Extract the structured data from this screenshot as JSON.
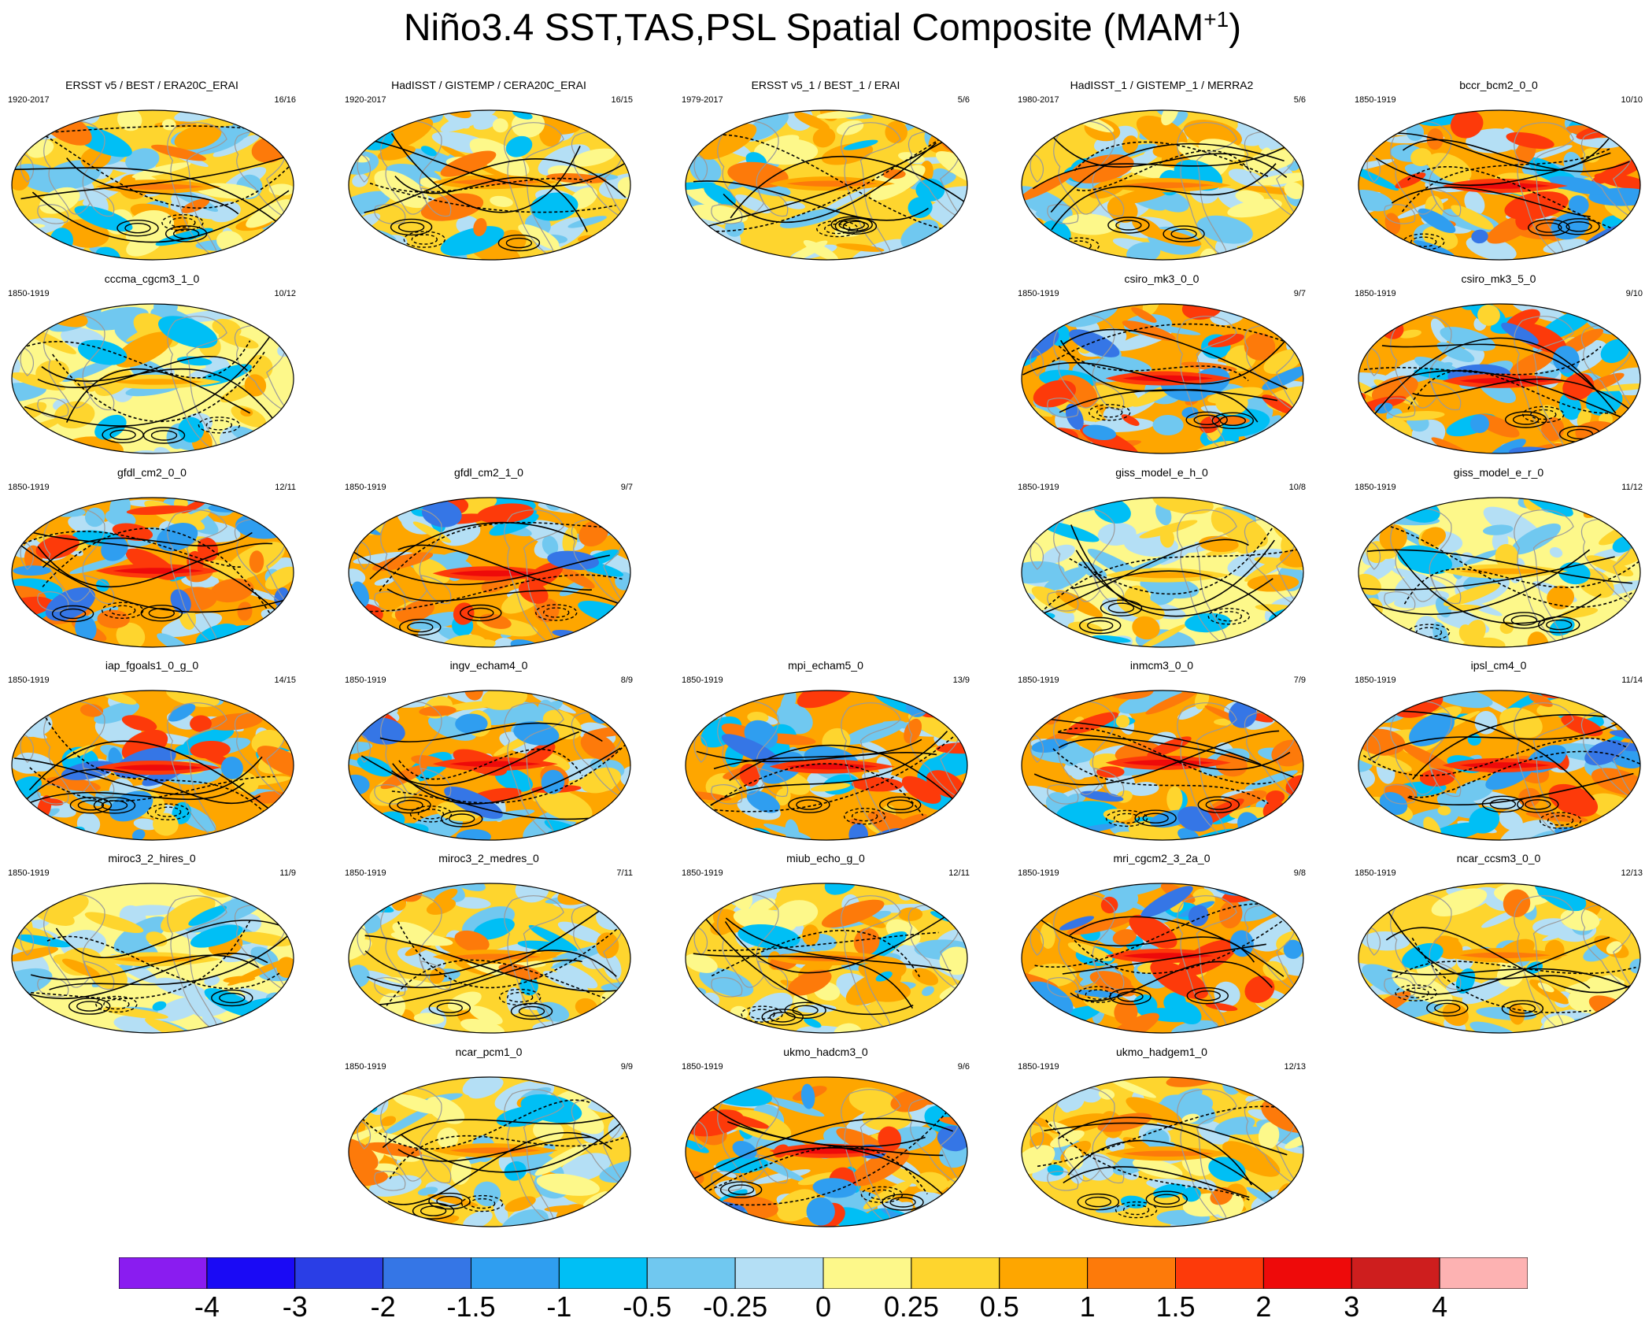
{
  "title": {
    "main": "Niño3.4 SST,TAS,PSL Spatial Composite (MAM",
    "superscript": "+1",
    "close": ")"
  },
  "chart_data": {
    "type": "map-composite",
    "title": "Niño3.4 SST,TAS,PSL Spatial Composite (MAM+1)",
    "variables": [
      "SST",
      "TAS",
      "PSL"
    ],
    "panels": [
      {
        "name": "ERSST v5 / BEST / ERA20C_ERAI",
        "years": "1920-2017",
        "counts": "16/16",
        "row": 0,
        "col": 0,
        "theme": "obs"
      },
      {
        "name": "HadISST / GISTEMP / CERA20C_ERAI",
        "years": "1920-2017",
        "counts": "16/15",
        "row": 0,
        "col": 1,
        "theme": "obs"
      },
      {
        "name": "ERSST v5_1 / BEST_1 / ERAI",
        "years": "1979-2017",
        "counts": "5/6",
        "row": 0,
        "col": 2,
        "theme": "obs"
      },
      {
        "name": "HadISST_1 / GISTEMP_1 / MERRA2",
        "years": "1980-2017",
        "counts": "5/6",
        "row": 0,
        "col": 3,
        "theme": "obs"
      },
      {
        "name": "bccr_bcm2_0_0",
        "years": "1850-1919",
        "counts": "10/10",
        "row": 0,
        "col": 4,
        "theme": "strong"
      },
      {
        "name": "cccma_cgcm3_1_0",
        "years": "1850-1919",
        "counts": "10/12",
        "row": 1,
        "col": 0,
        "theme": "weak"
      },
      {
        "name": "csiro_mk3_0_0",
        "years": "1850-1919",
        "counts": "9/7",
        "row": 1,
        "col": 3,
        "theme": "strong"
      },
      {
        "name": "csiro_mk3_5_0",
        "years": "1850-1919",
        "counts": "9/10",
        "row": 1,
        "col": 4,
        "theme": "strong"
      },
      {
        "name": "gfdl_cm2_0_0",
        "years": "1850-1919",
        "counts": "12/11",
        "row": 2,
        "col": 0,
        "theme": "strong"
      },
      {
        "name": "gfdl_cm2_1_0",
        "years": "1850-1919",
        "counts": "9/7",
        "row": 2,
        "col": 1,
        "theme": "strong"
      },
      {
        "name": "giss_model_e_h_0",
        "years": "1850-1919",
        "counts": "10/8",
        "row": 2,
        "col": 3,
        "theme": "weak"
      },
      {
        "name": "giss_model_e_r_0",
        "years": "1850-1919",
        "counts": "11/12",
        "row": 2,
        "col": 4,
        "theme": "weak"
      },
      {
        "name": "iap_fgoals1_0_g_0",
        "years": "1850-1919",
        "counts": "14/15",
        "row": 3,
        "col": 0,
        "theme": "strong"
      },
      {
        "name": "ingv_echam4_0",
        "years": "1850-1919",
        "counts": "8/9",
        "row": 3,
        "col": 1,
        "theme": "strong"
      },
      {
        "name": "mpi_echam5_0",
        "years": "1850-1919",
        "counts": "13/9",
        "row": 3,
        "col": 2,
        "theme": "strong"
      },
      {
        "name": "inmcm3_0_0",
        "years": "1850-1919",
        "counts": "7/9",
        "row": 3,
        "col": 3,
        "theme": "strong"
      },
      {
        "name": "ipsl_cm4_0",
        "years": "1850-1919",
        "counts": "11/14",
        "row": 3,
        "col": 4,
        "theme": "strong"
      },
      {
        "name": "miroc3_2_hires_0",
        "years": "1850-1919",
        "counts": "11/9",
        "row": 4,
        "col": 0,
        "theme": "weak"
      },
      {
        "name": "miroc3_2_medres_0",
        "years": "1850-1919",
        "counts": "7/11",
        "row": 4,
        "col": 1,
        "theme": "obs"
      },
      {
        "name": "miub_echo_g_0",
        "years": "1850-1919",
        "counts": "12/11",
        "row": 4,
        "col": 2,
        "theme": "obs"
      },
      {
        "name": "mri_cgcm2_3_2a_0",
        "years": "1850-1919",
        "counts": "9/8",
        "row": 4,
        "col": 3,
        "theme": "strong"
      },
      {
        "name": "ncar_ccsm3_0_0",
        "years": "1850-1919",
        "counts": "12/13",
        "row": 4,
        "col": 4,
        "theme": "obs"
      },
      {
        "name": "ncar_pcm1_0",
        "years": "1850-1919",
        "counts": "9/9",
        "row": 5,
        "col": 1,
        "theme": "obs"
      },
      {
        "name": "ukmo_hadcm3_0",
        "years": "1850-1919",
        "counts": "9/6",
        "row": 5,
        "col": 2,
        "theme": "strong"
      },
      {
        "name": "ukmo_hadgem1_0",
        "years": "1850-1919",
        "counts": "12/13",
        "row": 5,
        "col": 3,
        "theme": "obs"
      }
    ],
    "colorbar": {
      "labels": [
        "-4",
        "-3",
        "-2",
        "-1.5",
        "-1",
        "-0.5",
        "-0.25",
        "0",
        "0.25",
        "0.5",
        "1",
        "1.5",
        "2",
        "3",
        "4"
      ],
      "colors": [
        "#8a1cf0",
        "#1a0af5",
        "#2a3ee6",
        "#3576e6",
        "#2f9ef0",
        "#00bff5",
        "#70c8f0",
        "#b4dff5",
        "#fdf88a",
        "#fed52e",
        "#fea600",
        "#fd7a0a",
        "#fd3a0a",
        "#ee0a0a",
        "#ce1e1e",
        "#fdb2b2"
      ]
    }
  }
}
